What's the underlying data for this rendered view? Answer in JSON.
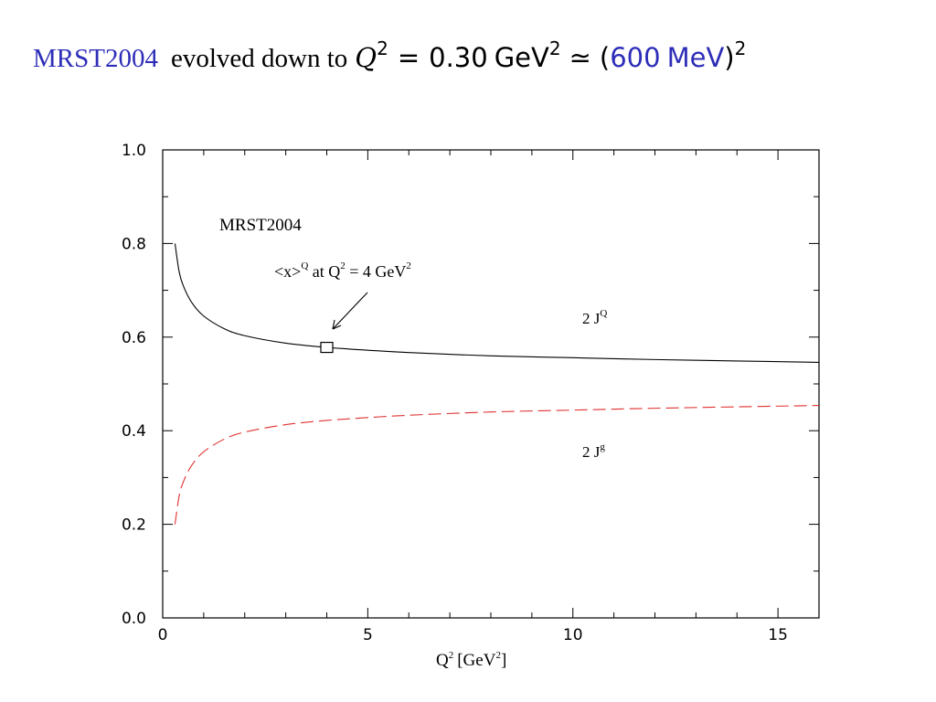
{
  "header": {
    "name": "MRST2004",
    "text": "evolved down to",
    "q": "Q",
    "exp": "2",
    "eq": "=",
    "value": "0.30",
    "unit": "GeV",
    "approx": "≃",
    "open": "(",
    "mev_value": "600",
    "mev_unit": "MeV",
    "close": ")",
    "colors": {
      "accent": "#2d2db8"
    }
  },
  "chart_data": {
    "type": "line",
    "xlabel": "Q",
    "xlabel_sup": "2",
    "xlabel_unit_open": "[GeV",
    "xlabel_unit_sup": "2",
    "xlabel_unit_close": "]",
    "xlim": [
      0,
      16
    ],
    "ylim": [
      0,
      1.0
    ],
    "xticks": [
      0,
      5,
      10,
      15
    ],
    "xtick_labels": [
      "0",
      "5",
      "10",
      "15"
    ],
    "yticks": [
      0,
      0.2,
      0.4,
      0.6,
      0.8,
      1.0
    ],
    "ytick_labels": [
      "0.0",
      "0.2",
      "0.4",
      "0.6",
      "0.8",
      "1.0"
    ],
    "grid": false,
    "series": [
      {
        "name": "2 J^Q",
        "style": "solid",
        "color": "#000000",
        "x": [
          0.3,
          0.4,
          0.5,
          0.7,
          1.0,
          1.5,
          2.0,
          3.0,
          4.0,
          5.0,
          6.0,
          8.0,
          10.0,
          12.0,
          14.0,
          16.0
        ],
        "y": [
          0.8,
          0.74,
          0.71,
          0.675,
          0.645,
          0.618,
          0.603,
          0.587,
          0.578,
          0.572,
          0.567,
          0.56,
          0.556,
          0.552,
          0.549,
          0.546
        ]
      },
      {
        "name": "2 J^g",
        "style": "dashed",
        "color": "#e03030",
        "x": [
          0.3,
          0.4,
          0.5,
          0.7,
          1.0,
          1.5,
          2.0,
          3.0,
          4.0,
          5.0,
          6.0,
          8.0,
          10.0,
          12.0,
          14.0,
          16.0
        ],
        "y": [
          0.2,
          0.26,
          0.29,
          0.325,
          0.355,
          0.382,
          0.397,
          0.413,
          0.422,
          0.428,
          0.433,
          0.44,
          0.444,
          0.448,
          0.451,
          0.454
        ]
      }
    ],
    "annotations": {
      "model_label": "MRST2004",
      "marker_pre": "<x>",
      "marker_sup_Q": "Q",
      "marker_mid": " at Q",
      "marker_sup_2": "2",
      "marker_post": " = 4 GeV",
      "marker_sup_2b": "2",
      "marker_point": {
        "x": 4,
        "y": 0.578
      },
      "jq_base": "2 J",
      "jq_sup": "Q",
      "jg_base": "2 J",
      "jg_sup": "g"
    }
  }
}
